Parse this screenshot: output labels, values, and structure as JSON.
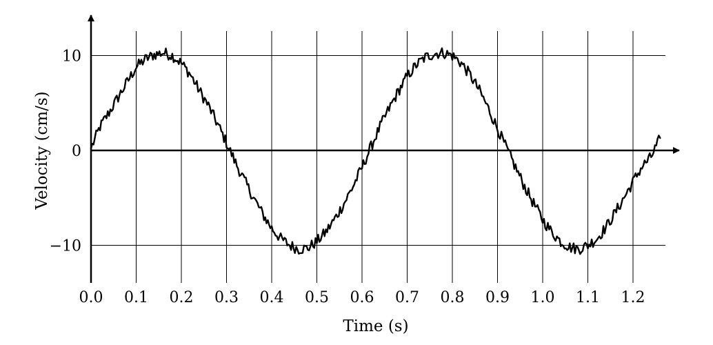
{
  "chart_data": {
    "type": "line",
    "title": "",
    "xlabel": "Time (s)",
    "ylabel": "Velocity (cm/s)",
    "xlim": [
      0,
      1.3
    ],
    "ylim": [
      -14,
      14
    ],
    "x_ticks": [
      0.0,
      0.1,
      0.2,
      0.3,
      0.4,
      0.5,
      0.6,
      0.7,
      0.8,
      0.9,
      1.0,
      1.1,
      1.2
    ],
    "x_tick_labels": [
      "0.0",
      "0.1",
      "0.2",
      "0.3",
      "0.4",
      "0.5",
      "0.6",
      "0.7",
      "0.8",
      "0.9",
      "1.0",
      "1.1",
      "1.2"
    ],
    "y_ticks": [
      -10,
      0,
      10
    ],
    "y_tick_labels": [
      "−10",
      "0",
      "10"
    ],
    "grid": {
      "vertical": true,
      "horizontal": true
    },
    "series": [
      {
        "x": [
          0.0,
          0.02,
          0.04,
          0.06,
          0.08,
          0.1,
          0.12,
          0.14,
          0.16,
          0.18,
          0.2,
          0.22,
          0.24,
          0.26,
          0.28,
          0.3,
          0.32,
          0.34,
          0.36,
          0.38,
          0.4,
          0.42,
          0.44,
          0.46,
          0.48,
          0.5,
          0.52,
          0.54,
          0.56,
          0.58,
          0.6,
          0.62,
          0.64,
          0.66,
          0.68,
          0.7,
          0.72,
          0.74,
          0.76,
          0.78,
          0.8,
          0.82,
          0.84,
          0.86,
          0.88,
          0.9,
          0.92,
          0.94,
          0.96,
          0.98,
          1.0,
          1.02,
          1.04,
          1.06,
          1.08,
          1.1,
          1.12,
          1.14,
          1.16,
          1.18,
          1.2,
          1.22,
          1.24,
          1.26
        ],
        "y": [
          0.2,
          2.5,
          4.0,
          5.6,
          7.2,
          8.8,
          9.6,
          10.1,
          10.3,
          10.0,
          9.2,
          8.0,
          6.3,
          4.7,
          2.8,
          0.8,
          -1.3,
          -3.2,
          -5.0,
          -6.7,
          -8.2,
          -9.3,
          -10.0,
          -10.4,
          -10.3,
          -9.6,
          -8.6,
          -7.2,
          -5.6,
          -3.8,
          -1.8,
          0.4,
          2.5,
          4.4,
          6.2,
          7.8,
          9.0,
          9.8,
          10.2,
          10.3,
          10.0,
          9.2,
          7.9,
          6.3,
          4.4,
          2.3,
          0.2,
          -1.8,
          -3.8,
          -5.6,
          -7.3,
          -8.6,
          -9.6,
          -10.2,
          -10.4,
          -10.0,
          -9.3,
          -8.1,
          -6.6,
          -5.0,
          -3.3,
          -1.7,
          -0.7,
          1.3
        ]
      }
    ]
  }
}
